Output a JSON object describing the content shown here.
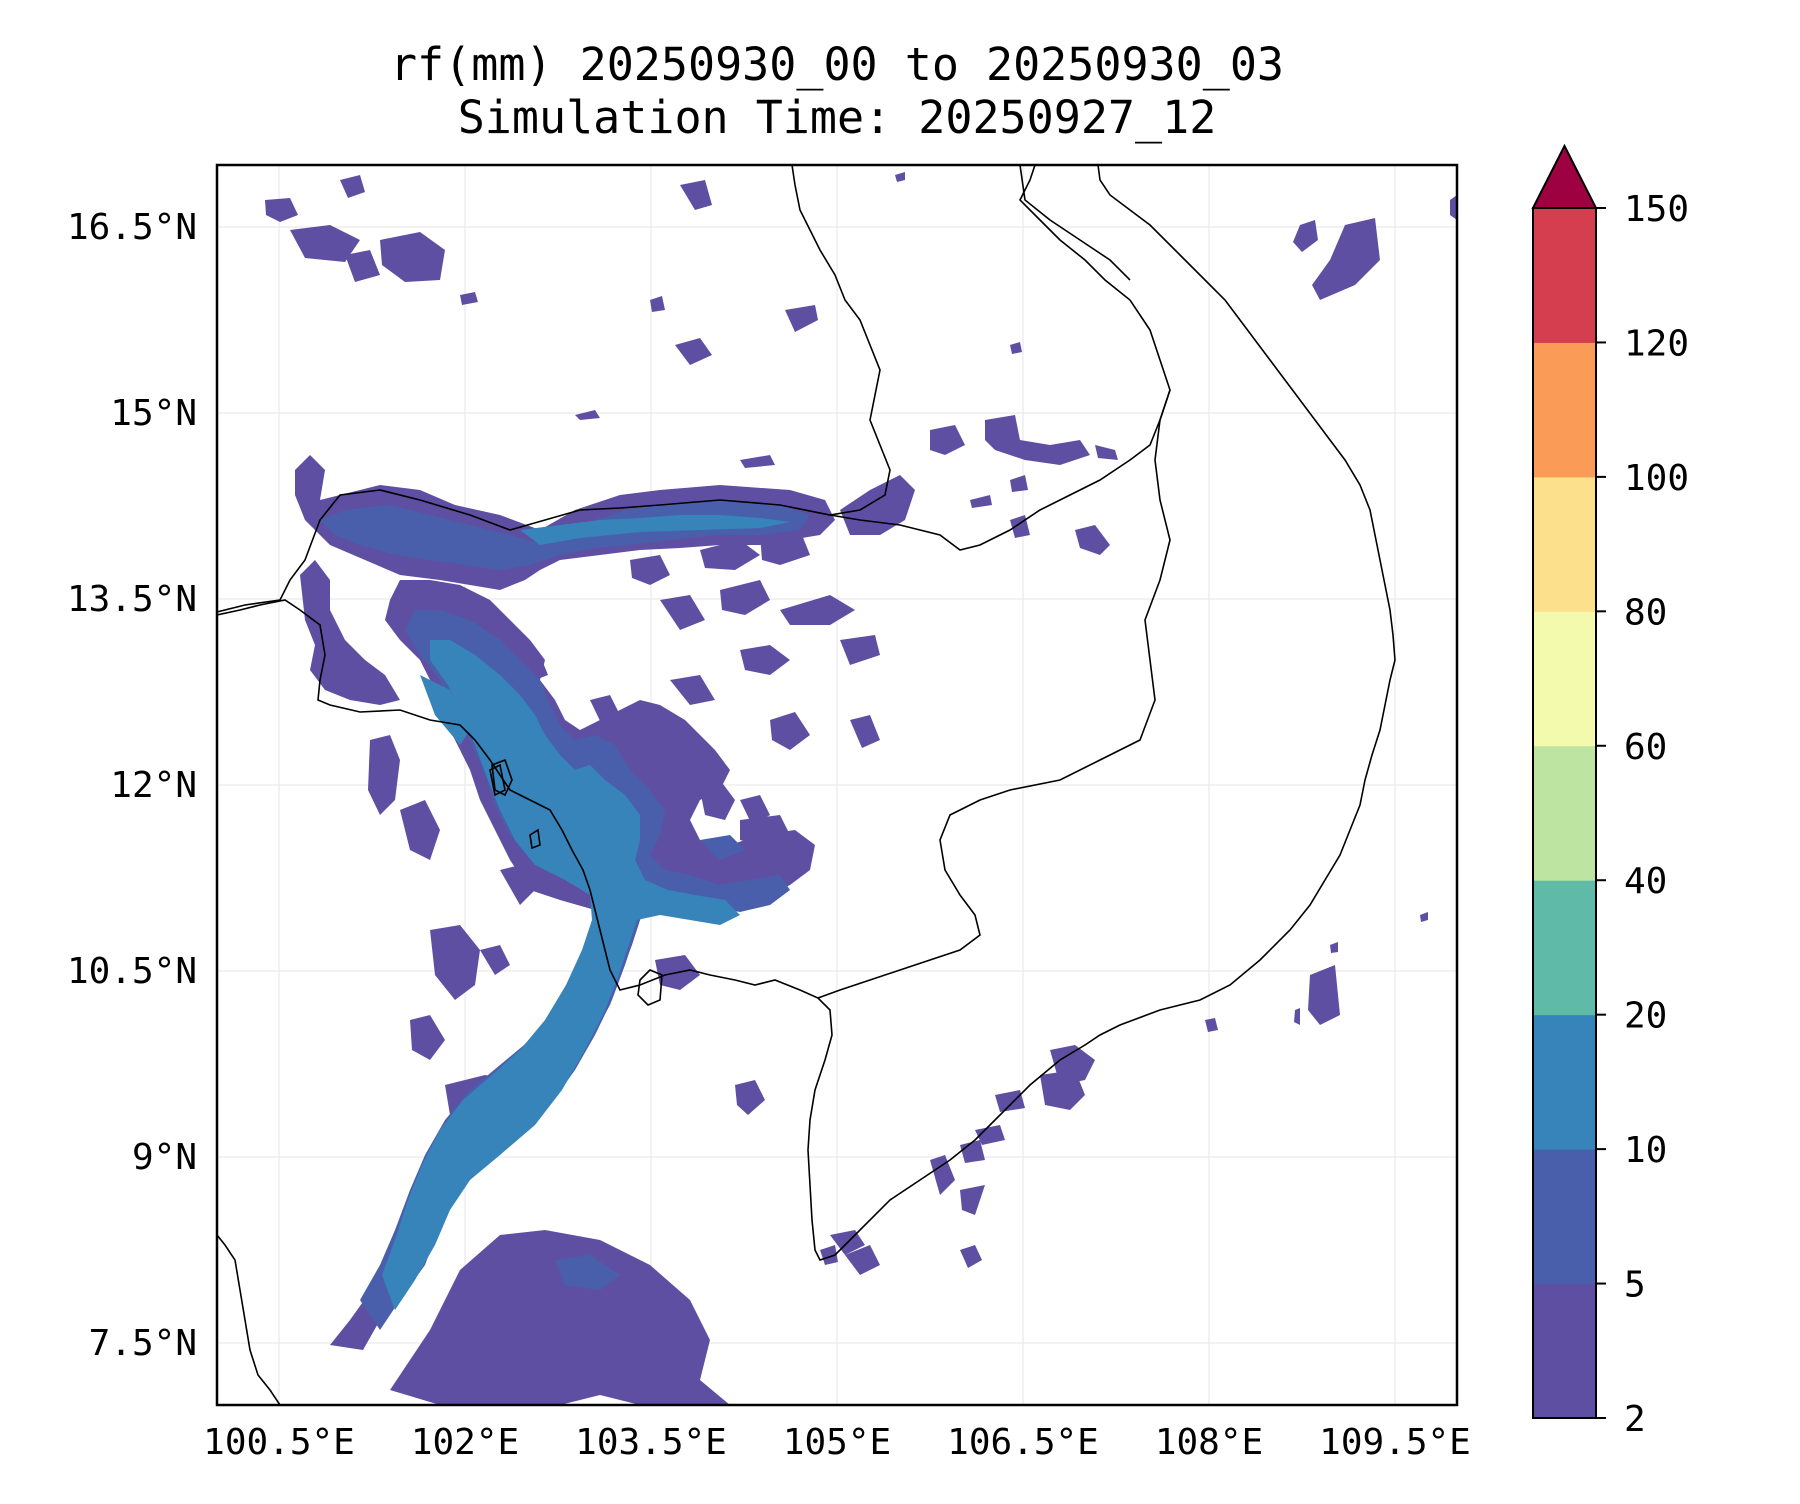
{
  "title": {
    "line1": "rf(mm) 20250930_00 to 20250930_03",
    "line2": "Simulation Time: 20250927_12"
  },
  "map": {
    "variable": "rf(mm)",
    "region": "Cambodia / southern Vietnam / Gulf of Thailand",
    "lon_range": [
      100.0,
      110.0
    ],
    "lat_range": [
      7.0,
      17.0
    ],
    "lon_ticks": [
      {
        "value": 100.5,
        "label": "100.5°E"
      },
      {
        "value": 102.0,
        "label": "102°E"
      },
      {
        "value": 103.5,
        "label": "103.5°E"
      },
      {
        "value": 105.0,
        "label": "105°E"
      },
      {
        "value": 106.5,
        "label": "106.5°E"
      },
      {
        "value": 108.0,
        "label": "108°E"
      },
      {
        "value": 109.5,
        "label": "109.5°E"
      }
    ],
    "lat_ticks": [
      {
        "value": 16.5,
        "label": "16.5°N"
      },
      {
        "value": 15.0,
        "label": "15°N"
      },
      {
        "value": 13.5,
        "label": "13.5°N"
      },
      {
        "value": 12.0,
        "label": "12°N"
      },
      {
        "value": 10.5,
        "label": "10.5°N"
      },
      {
        "value": 9.0,
        "label": "9°N"
      },
      {
        "value": 7.5,
        "label": "7.5°N"
      }
    ],
    "gridlines": true
  },
  "colorbar": {
    "levels": [
      {
        "label": "2",
        "color": "#5e4fa2"
      },
      {
        "label": "5",
        "color": "#4a5fab"
      },
      {
        "label": "10",
        "color": "#3784bb"
      },
      {
        "label": "20",
        "color": "#5fbaa8"
      },
      {
        "label": "40",
        "color": "#bde4a0"
      },
      {
        "label": "60",
        "color": "#f3faad"
      },
      {
        "label": "80",
        "color": "#fde08b"
      },
      {
        "label": "100",
        "color": "#fa9c58"
      },
      {
        "label": "120",
        "color": "#d53e4f"
      },
      {
        "label": "150",
        "color": ""
      }
    ],
    "extend_color": "#9e0142"
  },
  "colors": {
    "light_rain": "#5e4fa2",
    "moderate_rain": "#4a5fab",
    "heavy_rain": "#3784bb",
    "coast": "#000000",
    "grid": "#e6e6e6"
  }
}
